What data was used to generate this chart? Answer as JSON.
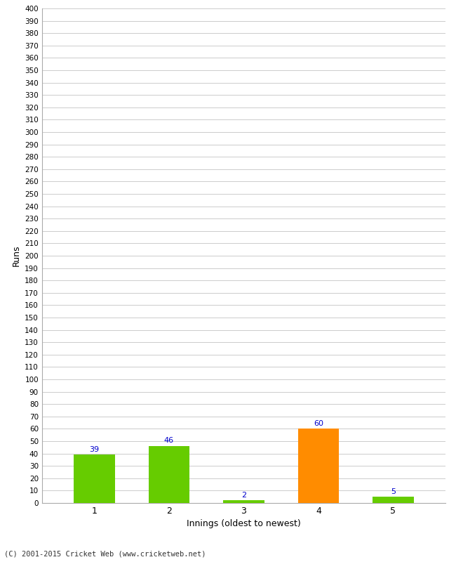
{
  "xlabel": "Innings (oldest to newest)",
  "ylabel": "Runs",
  "categories": [
    1,
    2,
    3,
    4,
    5
  ],
  "values": [
    39,
    46,
    2,
    60,
    5
  ],
  "bar_colors": [
    "#66cc00",
    "#66cc00",
    "#66cc00",
    "#ff8c00",
    "#66cc00"
  ],
  "label_color": "#0000cc",
  "ylim": [
    0,
    400
  ],
  "ytick_step": 10,
  "background_color": "#ffffff",
  "grid_color": "#cccccc",
  "footer": "(C) 2001-2015 Cricket Web (www.cricketweb.net)"
}
